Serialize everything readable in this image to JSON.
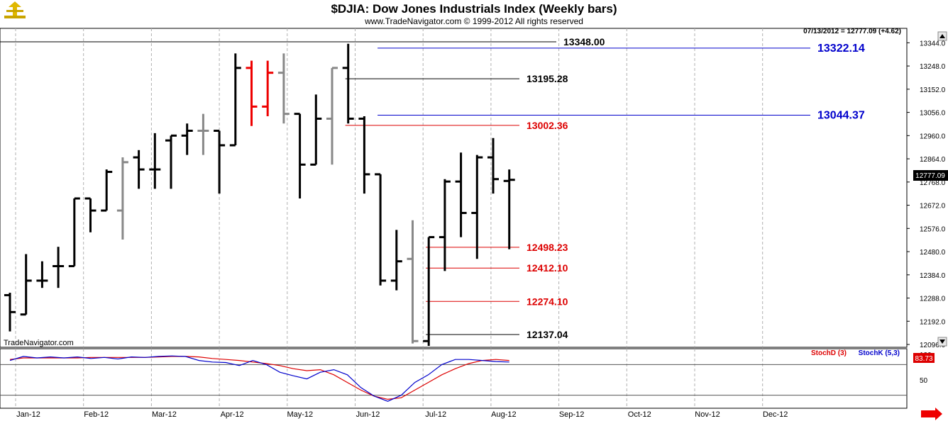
{
  "header": {
    "title": "$DJIA:  Dow Jones Industrials Index  (Weekly bars)",
    "subtitle": "www.TradeNavigator.com © 1999-2012 All rights reserved",
    "readout": "07/13/2012 = 12777.09 (+4.62)",
    "brand": "TradeNavigator.com"
  },
  "colors": {
    "bar": "#000000",
    "bar_gray": "#888888",
    "bar_red": "#ee0000",
    "level_black": "#000000",
    "level_red": "#dd0000",
    "level_blue": "#0000cc",
    "stoch_d": "#dd0000",
    "stoch_k": "#0000cc",
    "last_price_bg": "#000000",
    "stoch_badge_bg": "#dd0000"
  },
  "chart_data": {
    "type": "ohlc",
    "price_axis": {
      "ylim": [
        12096,
        13392
      ],
      "ticks": [
        "13344.0",
        "13248.0",
        "13152.0",
        "13056.0",
        "12960.0",
        "12864.0",
        "12768.0",
        "12672.0",
        "12576.0",
        "12480.0",
        "12384.0",
        "12288.0",
        "12192.0",
        "12096.0"
      ],
      "last_price_label": "12777.09"
    },
    "x_axis": {
      "ticks": [
        "Jan-12",
        "Feb-12",
        "Mar-12",
        "Apr-12",
        "May-12",
        "Jun-12",
        "Jul-12",
        "Aug-12",
        "Sep-12",
        "Oct-12",
        "Nov-12",
        "Dec-12"
      ]
    },
    "bars": [
      {
        "o": 12300,
        "h": 12310,
        "l": 12150,
        "c": 12230,
        "color": "black"
      },
      {
        "o": 12220,
        "h": 12470,
        "l": 12220,
        "c": 12360,
        "color": "black"
      },
      {
        "o": 12360,
        "h": 12440,
        "l": 12330,
        "c": 12360,
        "color": "black"
      },
      {
        "o": 12420,
        "h": 12500,
        "l": 12330,
        "c": 12420,
        "color": "black"
      },
      {
        "o": 12420,
        "h": 12700,
        "l": 12420,
        "c": 12700,
        "color": "black"
      },
      {
        "o": 12700,
        "h": 12700,
        "l": 12560,
        "c": 12650,
        "color": "black"
      },
      {
        "o": 12650,
        "h": 12820,
        "l": 12650,
        "c": 12810,
        "color": "black"
      },
      {
        "o": 12650,
        "h": 12870,
        "l": 12530,
        "c": 12850,
        "color": "gray"
      },
      {
        "o": 12870,
        "h": 12900,
        "l": 12740,
        "c": 12820,
        "color": "black"
      },
      {
        "o": 12820,
        "h": 12970,
        "l": 12740,
        "c": 12820,
        "color": "black"
      },
      {
        "o": 12940,
        "h": 12960,
        "l": 12740,
        "c": 12960,
        "color": "black"
      },
      {
        "o": 12960,
        "h": 13010,
        "l": 12880,
        "c": 12980,
        "color": "black"
      },
      {
        "o": 12980,
        "h": 13050,
        "l": 12880,
        "c": 12980,
        "color": "gray"
      },
      {
        "o": 12980,
        "h": 12980,
        "l": 12720,
        "c": 12920,
        "color": "black"
      },
      {
        "o": 12920,
        "h": 13300,
        "l": 12920,
        "c": 13240,
        "color": "black"
      },
      {
        "o": 13240,
        "h": 13270,
        "l": 13000,
        "c": 13080,
        "color": "red"
      },
      {
        "o": 13080,
        "h": 13270,
        "l": 13040,
        "c": 13220,
        "color": "red"
      },
      {
        "o": 13220,
        "h": 13300,
        "l": 13010,
        "c": 13050,
        "color": "gray"
      },
      {
        "o": 13050,
        "h": 13050,
        "l": 12700,
        "c": 12840,
        "color": "black"
      },
      {
        "o": 12840,
        "h": 13130,
        "l": 12840,
        "c": 13030,
        "color": "black"
      },
      {
        "o": 13030,
        "h": 13240,
        "l": 12840,
        "c": 13240,
        "color": "gray"
      },
      {
        "o": 13240,
        "h": 13340,
        "l": 13010,
        "c": 13030,
        "color": "black"
      },
      {
        "o": 13030,
        "h": 13040,
        "l": 12720,
        "c": 12800,
        "color": "black"
      },
      {
        "o": 12800,
        "h": 12800,
        "l": 12340,
        "c": 12360,
        "color": "black"
      },
      {
        "o": 12360,
        "h": 12570,
        "l": 12320,
        "c": 12440,
        "color": "black"
      },
      {
        "o": 12450,
        "h": 12610,
        "l": 12100,
        "c": 12110,
        "color": "gray"
      },
      {
        "o": 12110,
        "h": 12540,
        "l": 12090,
        "c": 12540,
        "color": "black"
      },
      {
        "o": 12540,
        "h": 12780,
        "l": 12400,
        "c": 12770,
        "color": "black"
      },
      {
        "o": 12770,
        "h": 12890,
        "l": 12540,
        "c": 12640,
        "color": "black"
      },
      {
        "o": 12640,
        "h": 12880,
        "l": 12450,
        "c": 12870,
        "color": "black"
      },
      {
        "o": 12870,
        "h": 12950,
        "l": 12720,
        "c": 12780,
        "color": "black"
      },
      {
        "o": 12772.47,
        "h": 12820,
        "l": 12490,
        "c": 12777.09,
        "color": "black"
      }
    ],
    "levels": [
      {
        "value": 13348.0,
        "label": "13348.00",
        "color": "black",
        "start_bar": 0,
        "text_side": "mid"
      },
      {
        "value": 13322.14,
        "label": "13322.14",
        "color": "blue",
        "start_bar": 23,
        "text_side": "far"
      },
      {
        "value": 13195.28,
        "label": "13195.28",
        "color": "black",
        "start_bar": 21,
        "text_side": "mid"
      },
      {
        "value": 13044.37,
        "label": "13044.37",
        "color": "blue",
        "start_bar": 23,
        "text_side": "far"
      },
      {
        "value": 13002.36,
        "label": "13002.36",
        "color": "red",
        "start_bar": 21,
        "text_side": "mid"
      },
      {
        "value": 12498.23,
        "label": "12498.23",
        "color": "red",
        "start_bar": 26,
        "text_side": "mid"
      },
      {
        "value": 12412.1,
        "label": "12412.10",
        "color": "red",
        "start_bar": 26,
        "text_side": "mid"
      },
      {
        "value": 12274.1,
        "label": "12274.10",
        "color": "red",
        "start_bar": 26,
        "text_side": "mid"
      },
      {
        "value": 12137.04,
        "label": "12137.04",
        "color": "black",
        "start_bar": 26,
        "text_side": "mid"
      }
    ],
    "stochastic": {
      "ylim": [
        0,
        100
      ],
      "ticks": [
        "100",
        "50"
      ],
      "reference_lines": [
        80,
        20
      ],
      "series": [
        {
          "name": "StochD (3)",
          "color": "red",
          "values": [
            90,
            93,
            93,
            93,
            93,
            93,
            94,
            94,
            94,
            94,
            94,
            95,
            96,
            96,
            95,
            92,
            90,
            88,
            85,
            82,
            78,
            72,
            68,
            70,
            60,
            45,
            30,
            18,
            12,
            15,
            30,
            45,
            60,
            72,
            82,
            88,
            90,
            88
          ]
        },
        {
          "name": "StochK (5,3)",
          "color": "blue",
          "values": [
            88,
            96,
            93,
            95,
            93,
            95,
            92,
            94,
            91,
            95,
            94,
            96,
            97,
            96,
            88,
            85,
            84,
            78,
            88,
            80,
            65,
            58,
            52,
            65,
            70,
            60,
            35,
            18,
            8,
            20,
            45,
            60,
            80,
            90,
            90,
            88,
            86,
            85
          ]
        }
      ],
      "badge_label": "83.73"
    }
  }
}
